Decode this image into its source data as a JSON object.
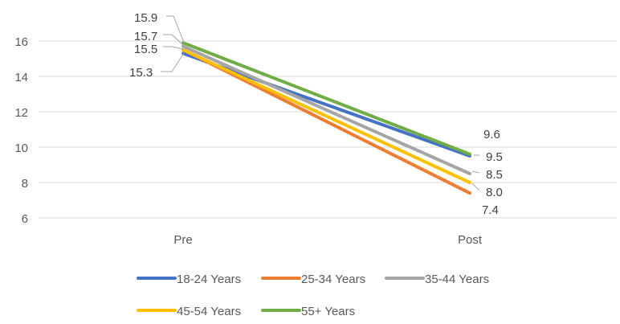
{
  "chart_data": {
    "type": "line",
    "categories": [
      "Pre",
      "Post"
    ],
    "series": [
      {
        "name": "18-24 Years",
        "color": "#4472C4",
        "values": [
          15.3,
          9.5
        ]
      },
      {
        "name": "25-34 Years",
        "color": "#ED7D31",
        "values": [
          15.5,
          7.4
        ]
      },
      {
        "name": "35-44 Years",
        "color": "#A5A5A5",
        "values": [
          15.7,
          8.5
        ]
      },
      {
        "name": "45-54 Years",
        "color": "#FFC000",
        "values": [
          15.5,
          8.0
        ]
      },
      {
        "name": "55+ Years",
        "color": "#70AD47",
        "values": [
          15.9,
          9.6
        ]
      }
    ],
    "pre_labels": [
      "15.9",
      "15.7",
      "15.5",
      "15.3"
    ],
    "post_labels": [
      "9.6",
      "9.5",
      "8.5",
      "8.0",
      "7.4"
    ],
    "y_ticks": [
      "16",
      "14",
      "12",
      "10",
      "8",
      "6"
    ],
    "ylim": [
      6,
      16
    ],
    "grid": true,
    "legend_position": "bottom",
    "title": "",
    "xlabel": "",
    "ylabel": ""
  }
}
